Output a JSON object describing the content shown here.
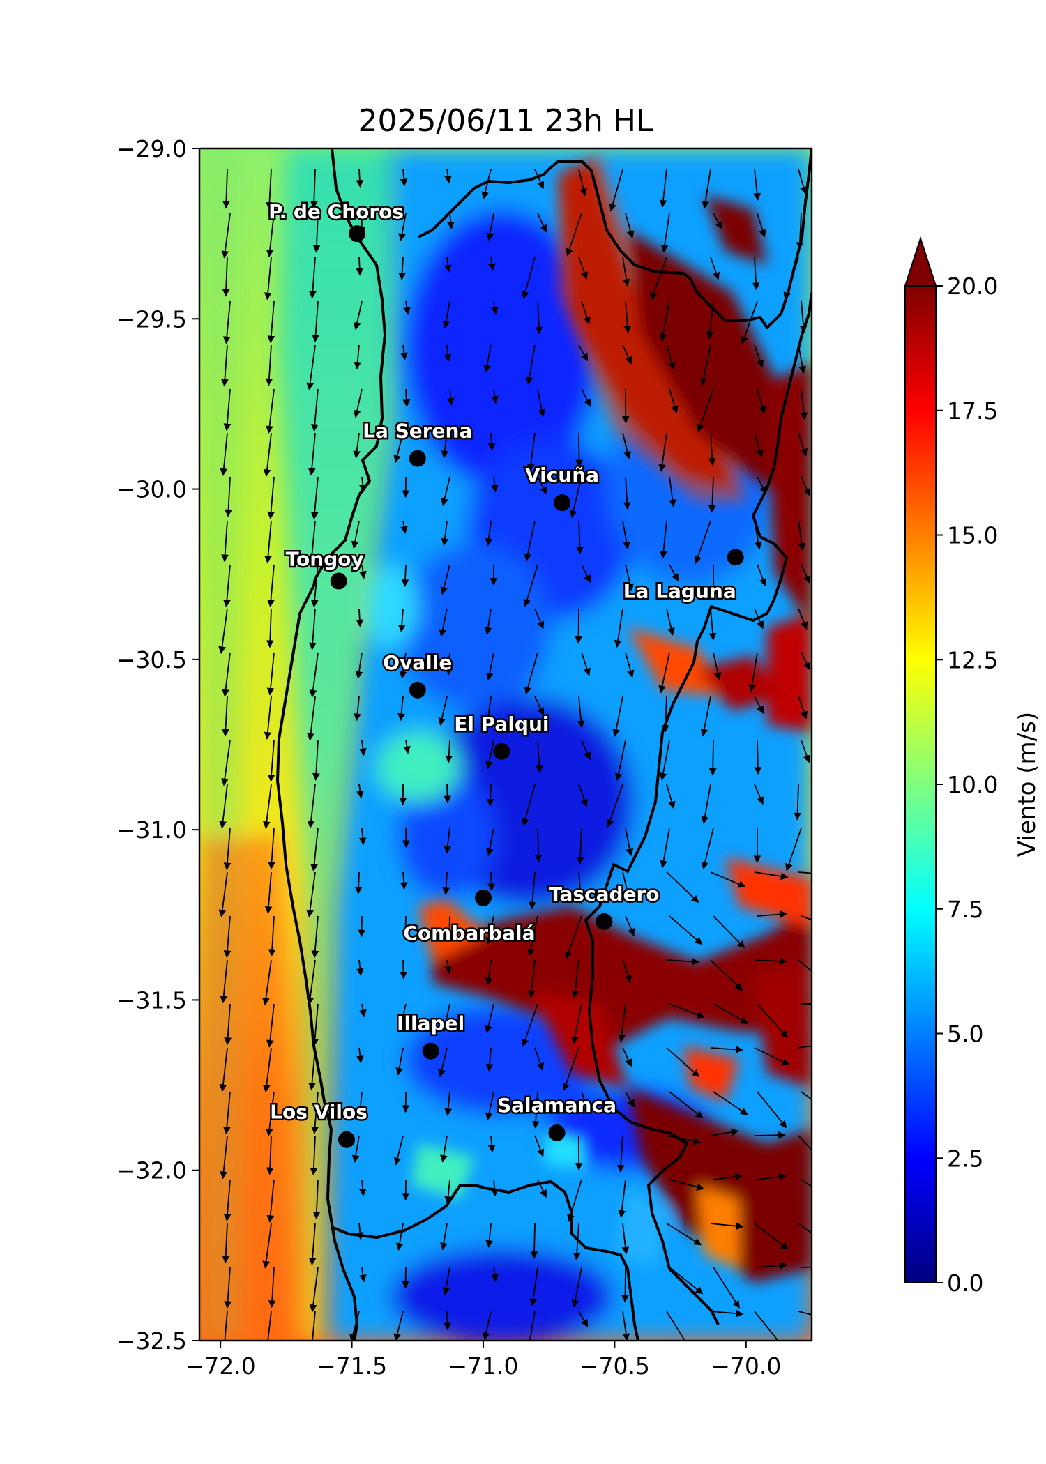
{
  "title": "2025/06/11 23h HL",
  "axes": {
    "x_ticks": [
      {
        "value": -72.0,
        "label": "−72.0"
      },
      {
        "value": -71.5,
        "label": "−71.5"
      },
      {
        "value": -71.0,
        "label": "−71.0"
      },
      {
        "value": -70.5,
        "label": "−70.5"
      },
      {
        "value": -70.0,
        "label": "−70.0"
      }
    ],
    "y_ticks": [
      {
        "value": -29.0,
        "label": "−29.0"
      },
      {
        "value": -29.5,
        "label": "−29.5"
      },
      {
        "value": -30.0,
        "label": "−30.0"
      },
      {
        "value": -30.5,
        "label": "−30.5"
      },
      {
        "value": -31.0,
        "label": "−31.0"
      },
      {
        "value": -31.5,
        "label": "−31.5"
      },
      {
        "value": -32.0,
        "label": "−32.0"
      },
      {
        "value": -32.5,
        "label": "−32.5"
      }
    ],
    "x_range": [
      -72.08,
      -69.75
    ],
    "y_range": [
      -32.5,
      -29.0
    ]
  },
  "colorbar": {
    "label": "Viento (m/s)",
    "range": [
      0,
      20
    ],
    "extend": "max",
    "ticks": [
      "0.0",
      "2.5",
      "5.0",
      "7.5",
      "10.0",
      "12.5",
      "15.0",
      "17.5",
      "20.0"
    ],
    "colors": [
      "#00007f",
      "#0000ff",
      "#007fff",
      "#00ffff",
      "#7fff7f",
      "#ffff00",
      "#ff7f00",
      "#ff0000",
      "#7f0000"
    ]
  },
  "places": [
    {
      "name": "P. de Choros",
      "lon": -71.48,
      "lat": -29.25
    },
    {
      "name": "La Serena",
      "lon": -71.25,
      "lat": -29.91
    },
    {
      "name": "Vicuña",
      "lon": -70.7,
      "lat": -30.04
    },
    {
      "name": "La Laguna",
      "lon": -70.04,
      "lat": -30.2
    },
    {
      "name": "Tongoy",
      "lon": -71.55,
      "lat": -30.27
    },
    {
      "name": "Ovalle",
      "lon": -71.25,
      "lat": -30.59
    },
    {
      "name": "El Palqui",
      "lon": -70.93,
      "lat": -30.77
    },
    {
      "name": "Combarbalá",
      "lon": -71.0,
      "lat": -31.2
    },
    {
      "name": "Tascadero",
      "lon": -70.54,
      "lat": -31.27
    },
    {
      "name": "Illapel",
      "lon": -71.2,
      "lat": -31.65
    },
    {
      "name": "Salamanca",
      "lon": -70.72,
      "lat": -31.89
    },
    {
      "name": "Los Vilos",
      "lon": -71.52,
      "lat": -31.91
    }
  ]
}
